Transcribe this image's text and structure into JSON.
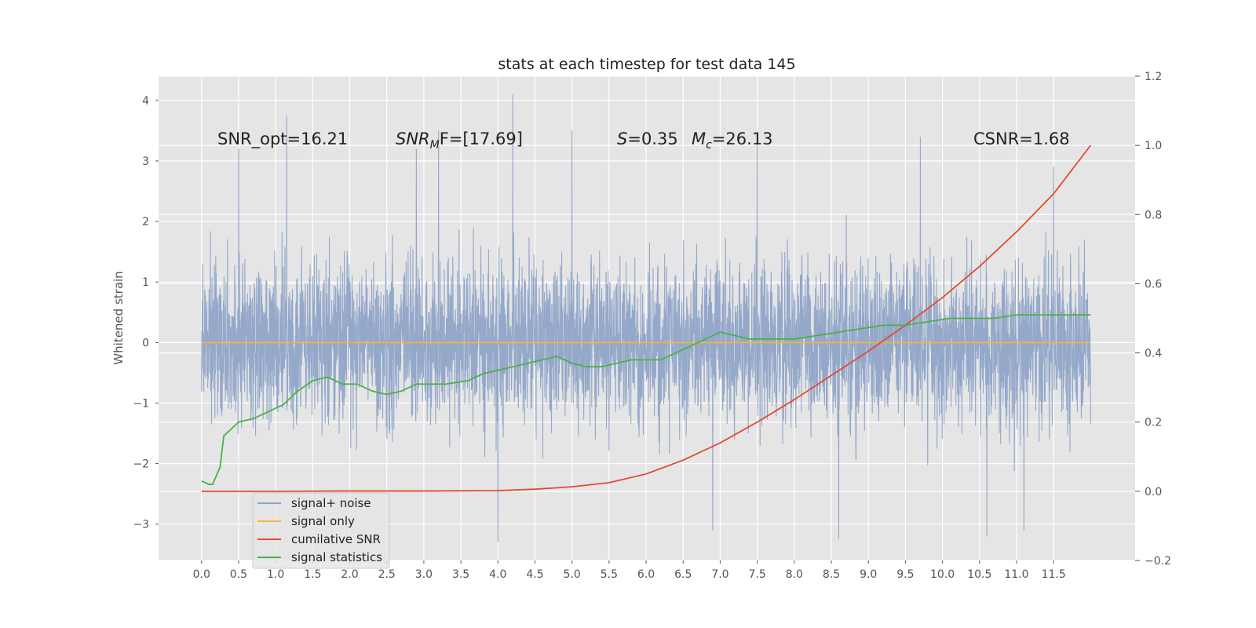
{
  "chart_data": {
    "type": "line",
    "title": "stats at each timestep for test data 145",
    "ylabel": "Whitened strain",
    "xlabel": "",
    "x_ticks": [
      "0.0",
      "0.5",
      "1.0",
      "1.5",
      "2.0",
      "2.5",
      "3.0",
      "3.5",
      "4.0",
      "4.5",
      "5.0",
      "5.5",
      "6.0",
      "6.5",
      "7.0",
      "7.5",
      "8.0",
      "8.5",
      "9.0",
      "9.5",
      "10.0",
      "10.5",
      "11.0",
      "11.5"
    ],
    "y_left_ticks": [
      "−3",
      "−2",
      "−1",
      "0",
      "1",
      "2",
      "3",
      "4"
    ],
    "y_right_ticks": [
      "−0.2",
      "0.0",
      "0.2",
      "0.4",
      "0.6",
      "0.8",
      "1.0",
      "1.2"
    ],
    "xlim": [
      -0.58,
      12.6
    ],
    "ylim_left": [
      -3.6,
      4.4
    ],
    "ylim_right": [
      -0.2,
      1.2
    ],
    "grid": true,
    "legend_placement": "lower-left",
    "annotations": {
      "snr_opt": "SNR_opt=16.21",
      "snr_mf_main": "SNR",
      "snr_mf_sub": "M",
      "snr_mf_rest": "F=[17.69]",
      "s_label": "S",
      "s_value": "=0.35",
      "mc_label": "M",
      "mc_sub": "c",
      "mc_value": "=26.13",
      "csnr": "CSNR=1.68"
    },
    "series": [
      {
        "name": "signal+ noise",
        "axis": "left",
        "color": "#8fa4c8",
        "x_range": [
          0.0,
          12.0
        ],
        "typical_range": [
          -1.4,
          1.4
        ],
        "peaks": [
          {
            "x": 0.5,
            "y": 3.2
          },
          {
            "x": 1.15,
            "y": 3.75
          },
          {
            "x": 2.9,
            "y": 3.2
          },
          {
            "x": 3.2,
            "y": 3.5
          },
          {
            "x": 4.2,
            "y": 4.1
          },
          {
            "x": 5.0,
            "y": 3.5
          },
          {
            "x": 7.5,
            "y": 3.4
          },
          {
            "x": 9.7,
            "y": 3.4
          },
          {
            "x": 11.5,
            "y": 2.9
          },
          {
            "x": 4.0,
            "y": -3.3
          },
          {
            "x": 6.9,
            "y": -3.1
          },
          {
            "x": 8.6,
            "y": -3.25
          },
          {
            "x": 10.6,
            "y": -3.2
          },
          {
            "x": 11.1,
            "y": -3.1
          }
        ]
      },
      {
        "name": "signal only",
        "axis": "left",
        "color": "#f5b342",
        "x": [
          0.0,
          12.0
        ],
        "values": [
          0.0,
          0.0
        ]
      },
      {
        "name": "cumilative SNR",
        "axis": "right",
        "color": "#e24a33",
        "x": [
          0.0,
          1.0,
          2.0,
          3.0,
          4.0,
          4.5,
          5.0,
          5.5,
          6.0,
          6.5,
          7.0,
          7.5,
          8.0,
          8.5,
          9.0,
          9.5,
          10.0,
          10.5,
          11.0,
          11.5,
          12.0
        ],
        "values": [
          0.0,
          0.0,
          0.001,
          0.001,
          0.002,
          0.006,
          0.013,
          0.025,
          0.05,
          0.09,
          0.14,
          0.2,
          0.265,
          0.335,
          0.405,
          0.48,
          0.56,
          0.65,
          0.75,
          0.86,
          1.0
        ]
      },
      {
        "name": "signal statistics",
        "axis": "right",
        "color": "#4daf4a",
        "x": [
          0.0,
          0.1,
          0.15,
          0.25,
          0.3,
          0.5,
          0.7,
          0.9,
          1.1,
          1.3,
          1.5,
          1.7,
          1.9,
          2.1,
          2.3,
          2.5,
          2.7,
          2.9,
          3.1,
          3.3,
          3.6,
          3.8,
          4.0,
          4.2,
          4.4,
          4.6,
          4.8,
          5.0,
          5.2,
          5.4,
          5.6,
          5.8,
          6.0,
          6.2,
          6.4,
          6.6,
          6.8,
          7.0,
          7.2,
          7.4,
          7.6,
          7.8,
          8.0,
          8.3,
          8.6,
          8.9,
          9.2,
          9.5,
          9.8,
          10.1,
          10.4,
          10.7,
          11.0,
          11.3,
          11.6,
          11.9,
          12.0
        ],
        "values": [
          0.03,
          0.02,
          0.02,
          0.07,
          0.16,
          0.2,
          0.21,
          0.23,
          0.25,
          0.29,
          0.32,
          0.33,
          0.31,
          0.31,
          0.29,
          0.28,
          0.29,
          0.31,
          0.31,
          0.31,
          0.32,
          0.34,
          0.35,
          0.36,
          0.37,
          0.38,
          0.39,
          0.37,
          0.36,
          0.36,
          0.37,
          0.38,
          0.38,
          0.38,
          0.4,
          0.42,
          0.44,
          0.46,
          0.45,
          0.44,
          0.44,
          0.44,
          0.44,
          0.45,
          0.46,
          0.47,
          0.48,
          0.48,
          0.49,
          0.5,
          0.5,
          0.5,
          0.51,
          0.51,
          0.51,
          0.51,
          0.51
        ]
      }
    ],
    "legend": [
      "signal+ noise",
      "signal only",
      "cumilative SNR",
      "signal statistics"
    ]
  }
}
